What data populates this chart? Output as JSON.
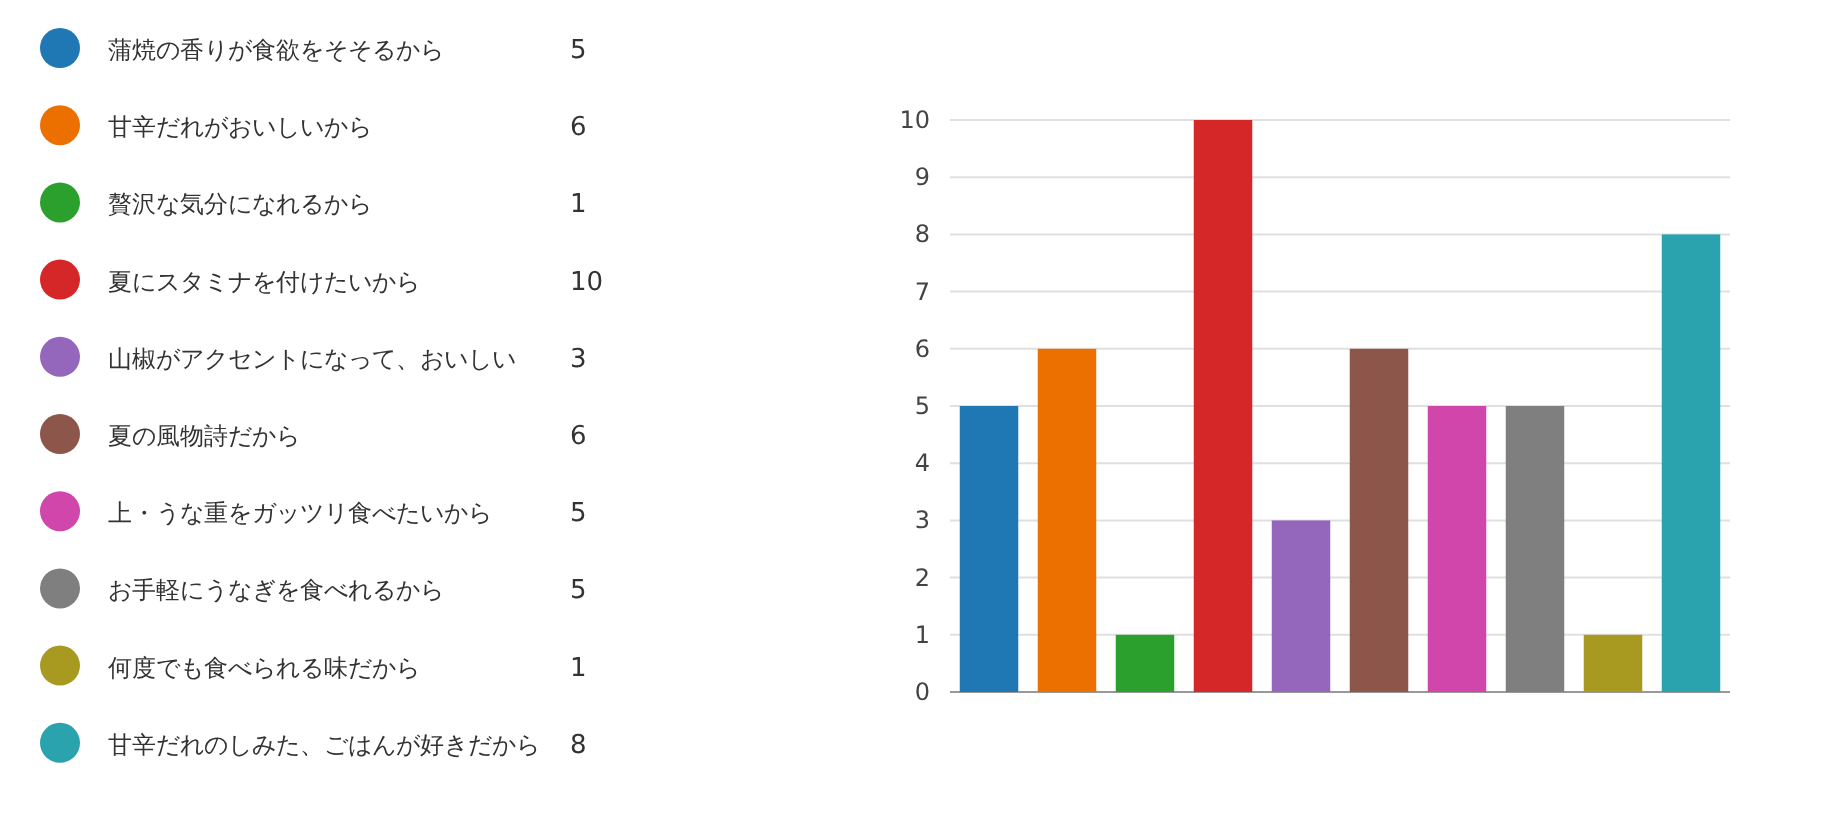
{
  "chart_data": {
    "type": "bar",
    "categories": [
      null
    ],
    "series": [
      {
        "name": "蒲焼の香りが食欲をそそるから",
        "color": "#1f77b4",
        "values": [
          5
        ]
      },
      {
        "name": "甘辛だれがおいしいから",
        "color": "#ec7000",
        "values": [
          6
        ]
      },
      {
        "name": "贅沢な気分になれるから",
        "color": "#2ca02c",
        "values": [
          1
        ]
      },
      {
        "name": "夏にスタミナを付けたいから",
        "color": "#d62728",
        "values": [
          10
        ]
      },
      {
        "name": "山椒がアクセントになって、おいしい",
        "color": "#9467bd",
        "values": [
          3
        ]
      },
      {
        "name": "夏の風物詩だから",
        "color": "#8c564b",
        "values": [
          6
        ]
      },
      {
        "name": "上・うな重をガッツリ食べたいから",
        "color": "#d046aa",
        "values": [
          5
        ]
      },
      {
        "name": "お手軽にうなぎを食べれるから",
        "color": "#7f7f7f",
        "values": [
          5
        ]
      },
      {
        "name": "何度でも食べられる味だから",
        "color": "#a89a20",
        "values": [
          1
        ]
      },
      {
        "name": "甘辛だれのしみた、ごはんが好きだから",
        "color": "#2aa3ae",
        "values": [
          8
        ]
      }
    ],
    "ylim": [
      0,
      10
    ],
    "yticks": [
      0,
      1,
      2,
      3,
      4,
      5,
      6,
      7,
      8,
      9,
      10
    ],
    "grid": "y",
    "legend": "left",
    "annotations": [
      "5",
      "6",
      "1",
      "10",
      "3",
      "6",
      "5",
      "5",
      "1",
      "8"
    ]
  }
}
